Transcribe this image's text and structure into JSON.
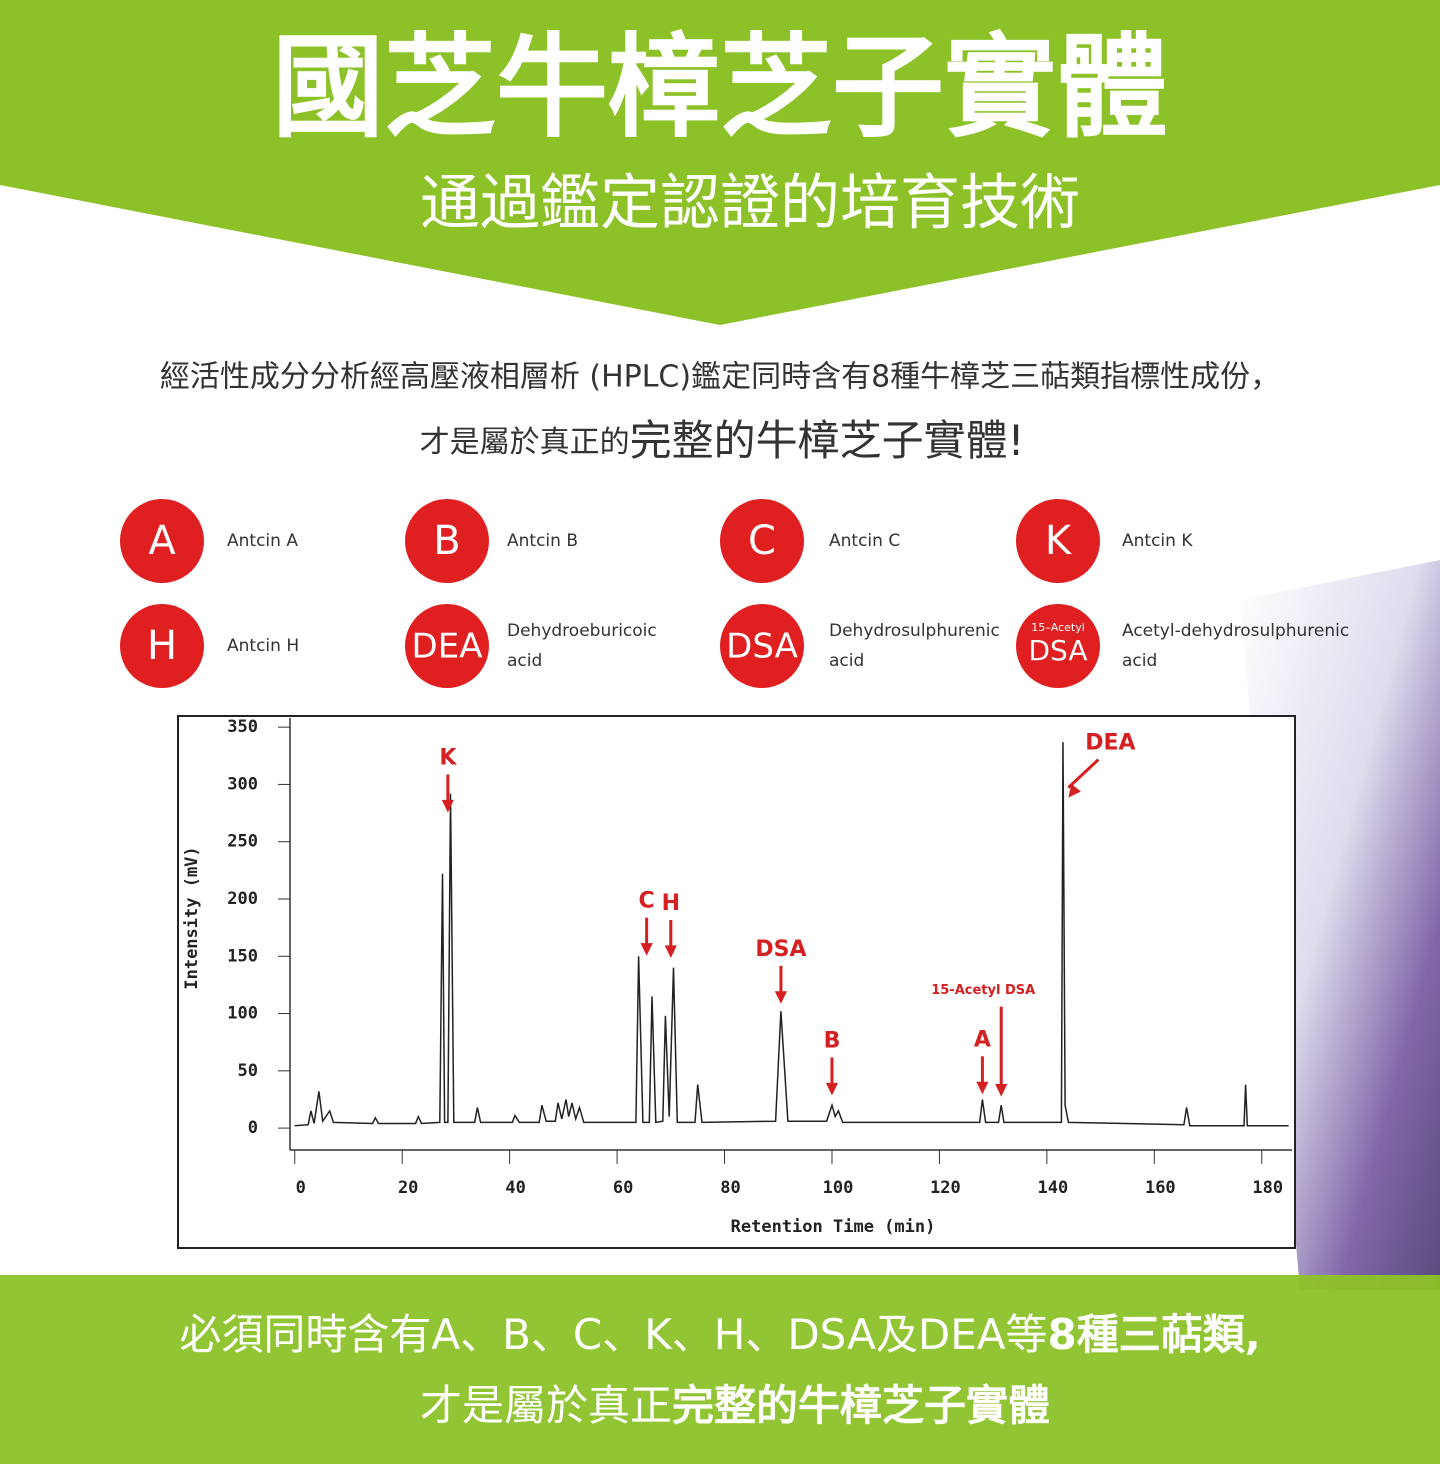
{
  "header": {
    "title": "國芝牛樟芝子實體",
    "subtitle": "通過鑑定認證的培育技術"
  },
  "intro": {
    "line1": "經活性成分分析經高壓液相層析 (HPLC)鑑定同時含有8種牛樟芝三萜類指標性成份，",
    "line2_plain": "才是屬於真正的",
    "line2_emphasis": "完整的牛樟芝子實體!"
  },
  "legend": [
    {
      "badge": "A",
      "name_lines": [
        "Antcin A"
      ]
    },
    {
      "badge": "B",
      "name_lines": [
        "Antcin B"
      ]
    },
    {
      "badge": "C",
      "name_lines": [
        "Antcin C"
      ]
    },
    {
      "badge": "K",
      "name_lines": [
        "Antcin K"
      ]
    },
    {
      "badge": "H",
      "name_lines": [
        "Antcin H"
      ]
    },
    {
      "badge": "DEA",
      "name_lines": [
        "Dehydroeburicoic",
        "acid"
      ]
    },
    {
      "badge": "DSA",
      "name_lines": [
        "Dehydrosulphurenic",
        "acid"
      ]
    },
    {
      "badge_prefix": "15–Acetyl",
      "badge": "DSA",
      "name_lines": [
        "Acetyl-dehydrosulphurenic",
        "acid"
      ]
    }
  ],
  "chart_data": {
    "type": "line",
    "x_label": "Retention Time (min)",
    "y_label": "Intensity (mV)",
    "color": "#222222",
    "xlim": [
      -2,
      186
    ],
    "ylim": [
      -20,
      358
    ],
    "xticks": [
      0,
      20,
      40,
      60,
      80,
      100,
      120,
      140,
      160,
      180
    ],
    "yticks": [
      0,
      50,
      100,
      150,
      200,
      250,
      300,
      350
    ],
    "x": [
      0,
      2.5,
      3,
      3.6,
      4.5,
      5.2,
      6.5,
      7.2,
      14.5,
      15,
      15.6,
      22.5,
      23,
      23.6,
      27,
      27.5,
      27.9,
      28.5,
      29,
      29.6,
      33.5,
      34,
      34.6,
      40.5,
      41,
      41.8,
      45.5,
      46,
      46.8,
      48.5,
      49,
      49.7,
      50.5,
      51,
      51.6,
      52.3,
      53,
      53.8,
      63.5,
      64,
      64.8,
      66,
      66.5,
      67.2,
      68.5,
      69,
      69.7,
      70.5,
      71.2,
      74.5,
      75,
      75.8,
      89.5,
      90.5,
      91.8,
      99,
      100,
      100.6,
      101.2,
      102,
      127.5,
      128,
      128.6,
      131,
      131.5,
      132,
      142.7,
      143,
      143.4,
      144,
      165.5,
      166,
      166.6,
      176.7,
      177,
      177.3,
      185
    ],
    "values": [
      2,
      3,
      15,
      4,
      32,
      6,
      15,
      5,
      4,
      9,
      4,
      4,
      10,
      4,
      5,
      222,
      5,
      5,
      292,
      5,
      5,
      18,
      5,
      5,
      11,
      5,
      5,
      20,
      6,
      6,
      22,
      8,
      25,
      10,
      22,
      8,
      18,
      5,
      5,
      150,
      5,
      5,
      115,
      5,
      6,
      98,
      10,
      140,
      5,
      5,
      38,
      5,
      6,
      102,
      6,
      6,
      20,
      10,
      15,
      5,
      5,
      25,
      5,
      5,
      20,
      5,
      5,
      337,
      20,
      5,
      3,
      18,
      2,
      2,
      38,
      2,
      2
    ],
    "annotations": [
      {
        "text": "K",
        "x": 28.5,
        "y": 272
      },
      {
        "text": "C",
        "x": 65.5,
        "y": 147
      },
      {
        "text": "H",
        "x": 70,
        "y": 145
      },
      {
        "text": "DSA",
        "x": 90.5,
        "y": 105
      },
      {
        "text": "B",
        "x": 100,
        "y": 25
      },
      {
        "text": "A",
        "x": 128,
        "y": 26
      },
      {
        "text": "15-Acetyl DSA",
        "x": 131.5,
        "y": 24
      },
      {
        "text": "DEA",
        "x": 144,
        "y": 285
      }
    ]
  },
  "footer": {
    "line1_plain": "必須同時含有A、B、C、K、H、DSA及DEA等",
    "line1_emphasis": "8種三萜類,",
    "line2_plain": "才是屬於真正",
    "line2_emphasis": "完整的牛樟芝子實體"
  }
}
